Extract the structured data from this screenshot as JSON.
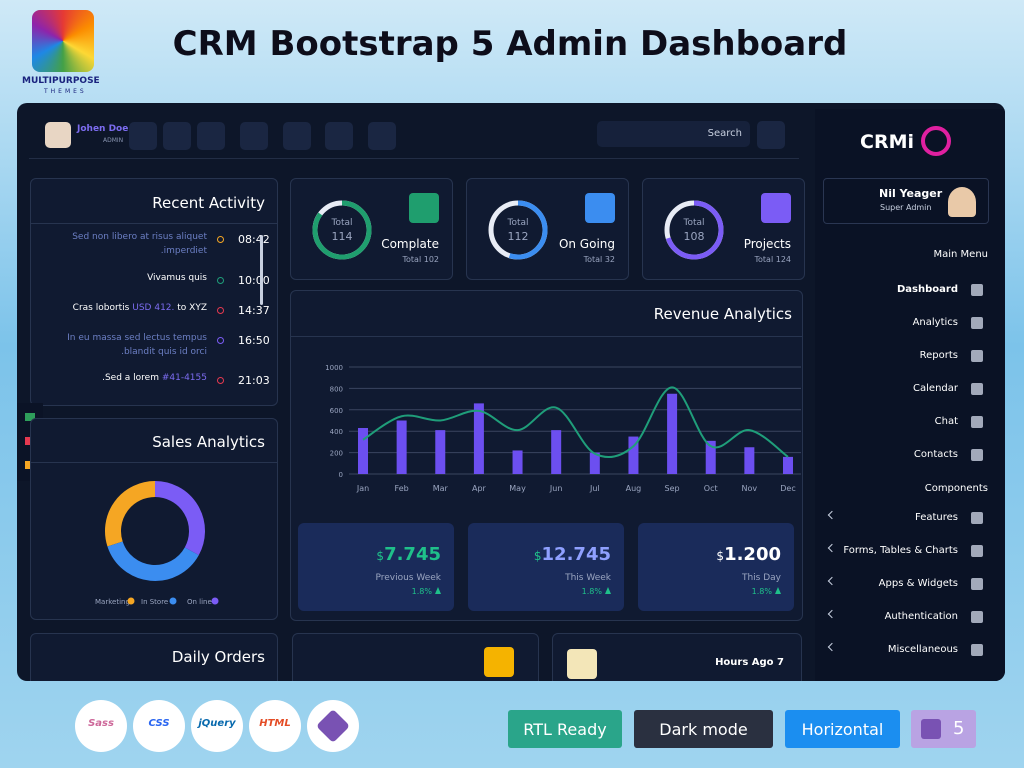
{
  "header": {
    "title": "CRM Bootstrap 5 Admin Dashboard",
    "logo_text": "MULTIPURPOSE",
    "logo_sub": "THEMES"
  },
  "topbar": {
    "user_name": "Johen Doe",
    "user_role": "ADMIN",
    "search": "Search"
  },
  "sidebar": {
    "brand": "CRMi",
    "user_name": "Nil Yeager",
    "user_role": "Super Admin",
    "sections": [
      {
        "title": "Main Menu",
        "items": [
          "Dashboard",
          "Analytics",
          "Reports",
          "Calendar",
          "Chat",
          "Contacts"
        ]
      },
      {
        "title": "Components",
        "items": [
          "Features",
          "Forms, Tables & Charts",
          "Apps & Widgets",
          "Authentication",
          "Miscellaneous"
        ]
      }
    ]
  },
  "recent_activity": {
    "title": "Recent Activity",
    "items": [
      {
        "text": "Sed non libero at risus aliquet",
        "text2": ".imperdiet",
        "time": "08:42"
      },
      {
        "text": "Vivamus quis",
        "time": "10:00"
      },
      {
        "text": "Cras lobortis",
        "link": "USD 412.",
        "suffix": "to XYZ",
        "time": "14:37"
      },
      {
        "text": "In eu massa sed lectus tempus",
        "text2": ".blandit quis id orci",
        "time": "16:50"
      },
      {
        "text": ".Sed a lorem",
        "link": "#41-4155",
        "time": "21:03"
      }
    ]
  },
  "stats": [
    {
      "ring_label": "Total",
      "ring_value": 114,
      "progress": 85,
      "title": "Complate",
      "subtitle": "Total 102",
      "color": "#1f9e6e"
    },
    {
      "ring_label": "Total",
      "ring_value": 112,
      "progress": 55,
      "title": "On Going",
      "subtitle": "Total 32",
      "color": "#3b8df0"
    },
    {
      "ring_label": "Total",
      "ring_value": 108,
      "progress": 70,
      "title": "Projects",
      "subtitle": "Total 124",
      "color": "#7b5cf5"
    }
  ],
  "revenue_summary": [
    {
      "currency": "$",
      "amount": "7.745",
      "label": "Previous Week",
      "change": "1.8%"
    },
    {
      "currency": "$",
      "amount": "12.745",
      "label": "This Week",
      "change": "1.8%"
    },
    {
      "currency": "$",
      "amount": "1.200",
      "label": "This Day",
      "change": "1.8%"
    }
  ],
  "daily_orders": {
    "title": "Daily Orders"
  },
  "notice": {
    "text": "Hours Ago 7"
  },
  "tech_logos": [
    "Sass",
    "CSS",
    "jQuery",
    "HTML"
  ],
  "badges": [
    "RTL Ready",
    "Dark mode",
    "Horizontal"
  ],
  "bootstrap_version": "5",
  "chart_data": [
    {
      "type": "bar",
      "title": "Revenue Analytics",
      "categories": [
        "Jan",
        "Feb",
        "Mar",
        "Apr",
        "May",
        "Jun",
        "Jul",
        "Aug",
        "Sep",
        "Oct",
        "Nov",
        "Dec"
      ],
      "series": [
        {
          "type": "bar",
          "color": "#6c4ff0",
          "values": [
            430,
            500,
            410,
            660,
            220,
            410,
            200,
            350,
            750,
            310,
            250,
            160
          ]
        },
        {
          "type": "line",
          "color": "#1f9e7a",
          "values": [
            320,
            540,
            500,
            590,
            410,
            620,
            190,
            260,
            810,
            260,
            410,
            160
          ]
        }
      ],
      "ylim": [
        0,
        1000
      ],
      "yticks": [
        0,
        200,
        400,
        600,
        800,
        1000
      ],
      "grid": true
    },
    {
      "type": "pie",
      "title": "Sales Analytics",
      "donut": true,
      "categories": [
        "Marketing",
        "In Store",
        "On line"
      ],
      "values": [
        30,
        37,
        33
      ],
      "colors": [
        "#f5a623",
        "#3b8df0",
        "#7b5cf5"
      ]
    }
  ]
}
